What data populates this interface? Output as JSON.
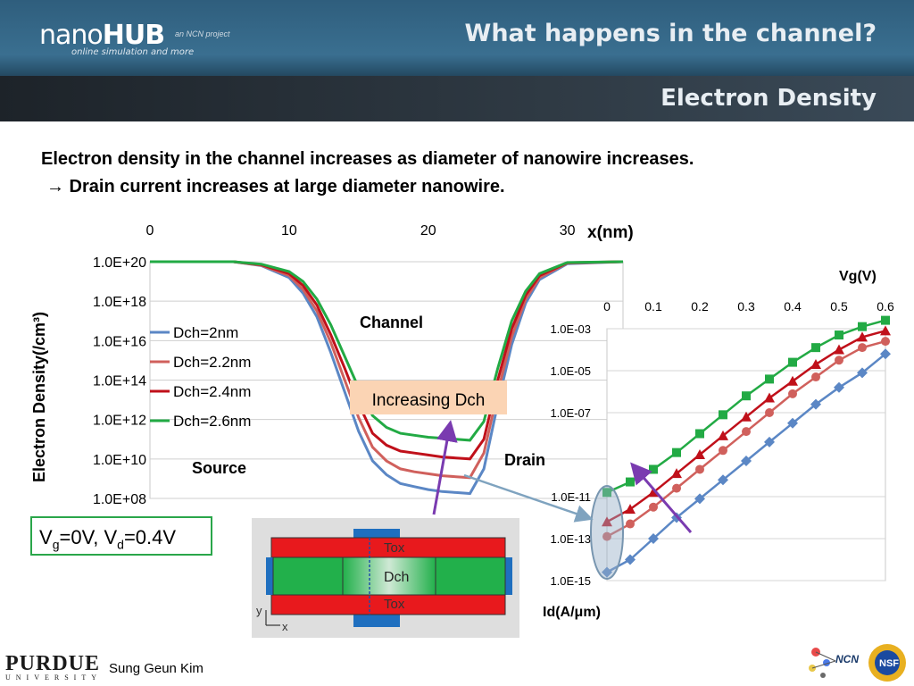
{
  "header": {
    "logo_brand_thin": "nano",
    "logo_brand_bold": "HUB",
    "logo_tagline": "online simulation and more",
    "ncn_project": "an NCN project",
    "title": "What happens in the channel?",
    "subtitle": "Electron Density"
  },
  "intro": {
    "line1": "Electron density in the channel increases as diameter of nanowire increases.",
    "line2": "→ Drain current increases at large diameter nanowire."
  },
  "colors": {
    "blue": "#5b87c5",
    "salmon": "#d0605c",
    "darkred": "#c0101a",
    "green": "#22aa44",
    "purple": "#7a3bb0"
  },
  "chart_data": [
    {
      "type": "line",
      "xlabel": "x(nm)",
      "ylabel": "Electron Density(/cm³)",
      "xlim": [
        0,
        34
      ],
      "x_ticks": [
        "0",
        "10",
        "20",
        "30"
      ],
      "y_ticks": [
        "1.0E+08",
        "1.0E+10",
        "1.0E+12",
        "1.0E+14",
        "1.0E+16",
        "1.0E+18",
        "1.0E+20"
      ],
      "ylim_log10": [
        8,
        20
      ],
      "y_scale": "log",
      "grid": "horizontal",
      "legend_position": "left",
      "series": [
        {
          "name": "Dch=2nm",
          "color": "#5b87c5",
          "x": [
            0,
            6,
            8,
            10,
            11,
            12,
            13,
            14,
            15,
            16,
            17,
            18,
            19,
            20,
            21,
            22,
            23,
            24,
            25,
            26,
            27,
            28,
            30,
            34
          ],
          "log10_y": [
            20,
            20,
            19.8,
            19.2,
            18.4,
            17.2,
            15.4,
            13.4,
            11.4,
            9.9,
            9.2,
            8.75,
            8.6,
            8.45,
            8.35,
            8.3,
            8.25,
            9.5,
            12.8,
            15.8,
            17.9,
            19.1,
            19.9,
            20
          ]
        },
        {
          "name": "Dch=2.2nm",
          "color": "#d0605c",
          "x": [
            0,
            6,
            8,
            10,
            11,
            12,
            13,
            14,
            15,
            16,
            17,
            18,
            19,
            20,
            21,
            22,
            23,
            24,
            25,
            26,
            27,
            28,
            30,
            34
          ],
          "log10_y": [
            20,
            20,
            19.82,
            19.3,
            18.6,
            17.5,
            15.9,
            14.0,
            12.1,
            10.6,
            9.9,
            9.5,
            9.35,
            9.25,
            9.15,
            9.1,
            9.05,
            10.3,
            13.4,
            16.2,
            18.1,
            19.2,
            19.93,
            20
          ]
        },
        {
          "name": "Dch=2.4nm",
          "color": "#c0101a",
          "x": [
            0,
            6,
            8,
            10,
            11,
            12,
            13,
            14,
            15,
            16,
            17,
            18,
            19,
            20,
            21,
            22,
            23,
            24,
            25,
            26,
            27,
            28,
            30,
            34
          ],
          "log10_y": [
            20,
            20,
            19.85,
            19.4,
            18.8,
            17.8,
            16.3,
            14.6,
            12.8,
            11.3,
            10.7,
            10.4,
            10.3,
            10.2,
            10.1,
            10.05,
            10.0,
            11.0,
            14.0,
            16.6,
            18.3,
            19.3,
            19.95,
            20
          ]
        },
        {
          "name": "Dch=2.6nm",
          "color": "#22aa44",
          "x": [
            0,
            6,
            8,
            10,
            11,
            12,
            13,
            14,
            15,
            16,
            17,
            18,
            19,
            20,
            21,
            22,
            23,
            24,
            25,
            26,
            27,
            28,
            30,
            34
          ],
          "log10_y": [
            20,
            20,
            19.88,
            19.5,
            19.0,
            18.1,
            16.8,
            15.2,
            13.6,
            12.2,
            11.6,
            11.3,
            11.2,
            11.1,
            11.05,
            11.0,
            10.95,
            11.9,
            14.6,
            17.0,
            18.5,
            19.4,
            19.96,
            20
          ]
        }
      ],
      "annotations": {
        "channel": "Channel",
        "source": "Source",
        "drain": "Drain",
        "increasing": "Increasing Dch"
      }
    },
    {
      "type": "line",
      "xlabel": "Vg(V)",
      "ylabel": "Id(A/μm)",
      "xlim": [
        0,
        0.6
      ],
      "x_ticks": [
        "0",
        "0.1",
        "0.2",
        "0.3",
        "0.4",
        "0.5",
        "0.6"
      ],
      "y_ticks": [
        "1.0E-03",
        "1.0E-05",
        "1.0E-07",
        "1.0E-11",
        "1.0E-13",
        "1.0E-15"
      ],
      "ylim_log10": [
        -15,
        -3
      ],
      "y_scale": "log",
      "grid": "horizontal",
      "series": [
        {
          "name": "Dch=2nm",
          "color": "#5b87c5",
          "x": [
            0,
            0.05,
            0.1,
            0.15,
            0.2,
            0.25,
            0.3,
            0.35,
            0.4,
            0.45,
            0.5,
            0.55,
            0.6
          ],
          "log10_y": [
            -14.6,
            -14.0,
            -13.0,
            -12.0,
            -11.1,
            -10.2,
            -9.3,
            -8.4,
            -7.5,
            -6.6,
            -5.8,
            -5.1,
            -4.2
          ]
        },
        {
          "name": "Dch=2.2nm",
          "color": "#d0605c",
          "x": [
            0,
            0.05,
            0.1,
            0.15,
            0.2,
            0.25,
            0.3,
            0.35,
            0.4,
            0.45,
            0.5,
            0.55,
            0.6
          ],
          "log10_y": [
            -12.9,
            -12.3,
            -11.5,
            -10.6,
            -9.7,
            -8.8,
            -7.9,
            -7.0,
            -6.1,
            -5.3,
            -4.5,
            -3.9,
            -3.6
          ]
        },
        {
          "name": "Dch=2.4nm",
          "color": "#c0101a",
          "x": [
            0,
            0.05,
            0.1,
            0.15,
            0.2,
            0.25,
            0.3,
            0.35,
            0.4,
            0.45,
            0.5,
            0.55,
            0.6
          ],
          "log10_y": [
            -12.2,
            -11.6,
            -10.8,
            -9.9,
            -9.0,
            -8.1,
            -7.2,
            -6.3,
            -5.5,
            -4.7,
            -4.0,
            -3.4,
            -3.1
          ]
        },
        {
          "name": "Dch=2.6nm",
          "color": "#22aa44",
          "x": [
            0,
            0.05,
            0.1,
            0.15,
            0.2,
            0.25,
            0.3,
            0.35,
            0.4,
            0.45,
            0.5,
            0.55,
            0.6
          ],
          "log10_y": [
            -10.8,
            -10.3,
            -9.7,
            -8.9,
            -8.0,
            -7.1,
            -6.2,
            -5.4,
            -4.6,
            -3.9,
            -3.3,
            -2.9,
            -2.6
          ]
        }
      ]
    }
  ],
  "conditions": {
    "vg_sym": "V",
    "vg_sub": "g",
    "vg_val": "=0V, ",
    "vd_sym": "V",
    "vd_sub": "d",
    "vd_val": "=0.4V"
  },
  "cross_section": {
    "tox_top": "Tox",
    "dch": "Dch",
    "tox_bottom": "Tox",
    "axis_y": "y",
    "axis_x": "x"
  },
  "footer": {
    "purdue_big": "PURDUE",
    "purdue_small": "UNIVERSITY",
    "author": "Sung Geun Kim",
    "ncn_logo_text": "NCN",
    "nsf_logo_text": "NSF"
  }
}
